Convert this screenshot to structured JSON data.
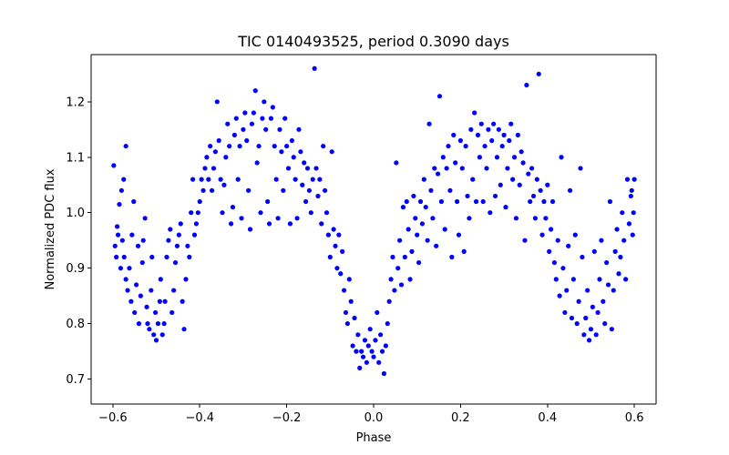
{
  "chart_data": {
    "type": "scatter",
    "title": "TIC 0140493525, period 0.3090 days",
    "xlabel": "Phase",
    "ylabel": "Normalized PDC flux",
    "xlim": [
      -0.65,
      0.65
    ],
    "ylim": [
      0.655,
      1.285
    ],
    "xticks": [
      -0.6,
      -0.4,
      -0.2,
      0.0,
      0.2,
      0.4,
      0.6
    ],
    "xtick_labels": [
      "−0.6",
      "−0.4",
      "−0.2",
      "0.0",
      "0.2",
      "0.4",
      "0.6"
    ],
    "yticks": [
      0.7,
      0.8,
      0.9,
      1.0,
      1.1,
      1.2
    ],
    "ytick_labels": [
      "0.7",
      "0.8",
      "0.9",
      "1.0",
      "1.1",
      "1.2"
    ],
    "grid": false,
    "marker_color": "#0000ff",
    "series": [
      {
        "name": "PDC flux",
        "points": [
          [
            -0.595,
            0.94
          ],
          [
            -0.59,
            0.975
          ],
          [
            -0.585,
            1.015
          ],
          [
            -0.58,
            1.04
          ],
          [
            -0.575,
            1.06
          ],
          [
            -0.57,
            1.12
          ],
          [
            -0.598,
            1.085
          ],
          [
            -0.592,
            0.92
          ],
          [
            -0.588,
            0.96
          ],
          [
            -0.582,
            0.9
          ],
          [
            -0.578,
            0.95
          ],
          [
            -0.574,
            0.92
          ],
          [
            -0.57,
            0.88
          ],
          [
            -0.566,
            0.86
          ],
          [
            -0.562,
            0.9
          ],
          [
            -0.558,
            0.84
          ],
          [
            -0.556,
            0.96
          ],
          [
            -0.552,
            1.02
          ],
          [
            -0.55,
            0.82
          ],
          [
            -0.546,
            0.87
          ],
          [
            -0.542,
            0.94
          ],
          [
            -0.54,
            0.8
          ],
          [
            -0.536,
            0.85
          ],
          [
            -0.532,
            0.91
          ],
          [
            -0.53,
            0.95
          ],
          [
            -0.526,
            0.99
          ],
          [
            -0.522,
            0.83
          ],
          [
            -0.52,
            0.8
          ],
          [
            -0.516,
            0.79
          ],
          [
            -0.512,
            0.86
          ],
          [
            -0.51,
            0.92
          ],
          [
            -0.506,
            0.78
          ],
          [
            -0.502,
            0.82
          ],
          [
            -0.5,
            0.77
          ],
          [
            -0.496,
            0.8
          ],
          [
            -0.492,
            0.84
          ],
          [
            -0.49,
            0.88
          ],
          [
            -0.486,
            0.78
          ],
          [
            -0.482,
            0.8
          ],
          [
            -0.48,
            0.84
          ],
          [
            -0.476,
            0.92
          ],
          [
            -0.472,
            0.95
          ],
          [
            -0.468,
            0.97
          ],
          [
            -0.464,
            0.82
          ],
          [
            -0.46,
            0.86
          ],
          [
            -0.456,
            0.91
          ],
          [
            -0.452,
            0.94
          ],
          [
            -0.448,
            0.96
          ],
          [
            -0.444,
            0.98
          ],
          [
            -0.44,
            0.84
          ],
          [
            -0.436,
            0.79
          ],
          [
            -0.432,
            0.88
          ],
          [
            -0.428,
            0.94
          ],
          [
            -0.424,
            0.92
          ],
          [
            -0.42,
            1.0
          ],
          [
            -0.416,
            1.06
          ],
          [
            -0.412,
            0.96
          ],
          [
            -0.408,
            0.98
          ],
          [
            -0.404,
            1.0
          ],
          [
            -0.4,
            1.02
          ],
          [
            -0.396,
            1.06
          ],
          [
            -0.392,
            1.04
          ],
          [
            -0.388,
            1.08
          ],
          [
            -0.384,
            1.1
          ],
          [
            -0.38,
            1.06
          ],
          [
            -0.376,
            1.12
          ],
          [
            -0.372,
            1.04
          ],
          [
            -0.368,
            1.08
          ],
          [
            -0.364,
            1.11
          ],
          [
            -0.36,
            1.2
          ],
          [
            -0.356,
            1.13
          ],
          [
            -0.352,
            1.06
          ],
          [
            -0.348,
            1.0
          ],
          [
            -0.344,
            1.05
          ],
          [
            -0.34,
            1.1
          ],
          [
            -0.336,
            1.16
          ],
          [
            -0.332,
            1.12
          ],
          [
            -0.328,
            0.98
          ],
          [
            -0.324,
            1.01
          ],
          [
            -0.32,
            1.14
          ],
          [
            -0.316,
            1.17
          ],
          [
            -0.312,
            1.06
          ],
          [
            -0.308,
            1.12
          ],
          [
            -0.304,
            0.99
          ],
          [
            -0.3,
            1.15
          ],
          [
            -0.296,
            1.18
          ],
          [
            -0.292,
            1.13
          ],
          [
            -0.288,
            1.04
          ],
          [
            -0.284,
            0.97
          ],
          [
            -0.28,
            1.16
          ],
          [
            -0.276,
            1.18
          ],
          [
            -0.272,
            1.22
          ],
          [
            -0.268,
            1.09
          ],
          [
            -0.264,
            1.12
          ],
          [
            -0.26,
            1.0
          ],
          [
            -0.256,
            1.17
          ],
          [
            -0.252,
            1.2
          ],
          [
            -0.248,
            1.15
          ],
          [
            -0.244,
            1.02
          ],
          [
            -0.24,
            0.98
          ],
          [
            -0.236,
            1.17
          ],
          [
            -0.232,
            1.19
          ],
          [
            -0.228,
            1.12
          ],
          [
            -0.224,
            1.06
          ],
          [
            -0.22,
            0.99
          ],
          [
            -0.216,
            1.15
          ],
          [
            -0.212,
            1.11
          ],
          [
            -0.208,
            1.04
          ],
          [
            -0.204,
            1.17
          ],
          [
            -0.2,
            1.12
          ],
          [
            -0.196,
            1.08
          ],
          [
            -0.192,
            0.98
          ],
          [
            -0.188,
            1.13
          ],
          [
            -0.184,
            1.1
          ],
          [
            -0.18,
            1.06
          ],
          [
            -0.176,
            0.99
          ],
          [
            -0.172,
            1.15
          ],
          [
            -0.168,
            1.11
          ],
          [
            -0.164,
            1.05
          ],
          [
            -0.16,
            1.09
          ],
          [
            -0.156,
            1.02
          ],
          [
            -0.152,
            1.08
          ],
          [
            -0.148,
            1.04
          ],
          [
            -0.144,
            1.0
          ],
          [
            -0.14,
            1.06
          ],
          [
            -0.136,
            1.26
          ],
          [
            -0.132,
            1.08
          ],
          [
            -0.128,
            1.03
          ],
          [
            -0.124,
            1.06
          ],
          [
            -0.12,
            0.98
          ],
          [
            -0.116,
            1.12
          ],
          [
            -0.112,
            1.04
          ],
          [
            -0.108,
            1.0
          ],
          [
            -0.104,
            0.96
          ],
          [
            -0.1,
            0.92
          ],
          [
            -0.096,
            1.11
          ],
          [
            -0.092,
            0.97
          ],
          [
            -0.088,
            0.94
          ],
          [
            -0.084,
            0.9
          ],
          [
            -0.08,
            0.96
          ],
          [
            -0.076,
            0.89
          ],
          [
            -0.072,
            0.93
          ],
          [
            -0.068,
            0.86
          ],
          [
            -0.064,
            0.82
          ],
          [
            -0.06,
            0.8
          ],
          [
            -0.056,
            0.88
          ],
          [
            -0.052,
            0.84
          ],
          [
            -0.048,
            0.76
          ],
          [
            -0.044,
            0.81
          ],
          [
            -0.04,
            0.75
          ],
          [
            -0.036,
            0.78
          ],
          [
            -0.032,
            0.72
          ],
          [
            -0.028,
            0.75
          ],
          [
            -0.024,
            0.74
          ],
          [
            -0.02,
            0.77
          ],
          [
            -0.016,
            0.73
          ],
          [
            -0.012,
            0.76
          ],
          [
            -0.008,
            0.79
          ],
          [
            -0.004,
            0.75
          ],
          [
            0.0,
            0.74
          ],
          [
            0.004,
            0.77
          ],
          [
            0.008,
            0.82
          ],
          [
            0.012,
            0.73
          ],
          [
            0.016,
            0.78
          ],
          [
            0.02,
            0.75
          ],
          [
            0.024,
            0.71
          ],
          [
            0.028,
            0.76
          ],
          [
            0.032,
            0.8
          ],
          [
            0.036,
            0.84
          ],
          [
            0.04,
            0.88
          ],
          [
            0.044,
            0.92
          ],
          [
            0.048,
            0.86
          ],
          [
            0.052,
            1.09
          ],
          [
            0.056,
            0.9
          ],
          [
            0.06,
            0.95
          ],
          [
            0.064,
            0.87
          ],
          [
            0.068,
            1.01
          ],
          [
            0.072,
            0.92
          ],
          [
            0.076,
            1.02
          ],
          [
            0.08,
            0.97
          ],
          [
            0.084,
            0.88
          ],
          [
            0.088,
            0.93
          ],
          [
            0.092,
            1.03
          ],
          [
            0.096,
            0.99
          ],
          [
            0.1,
            0.96
          ],
          [
            0.104,
            0.91
          ],
          [
            0.108,
            1.02
          ],
          [
            0.112,
            0.98
          ],
          [
            0.116,
            1.06
          ],
          [
            0.12,
            1.01
          ],
          [
            0.124,
            0.95
          ],
          [
            0.128,
            1.16
          ],
          [
            0.132,
            1.04
          ],
          [
            0.136,
            0.99
          ],
          [
            0.14,
            1.08
          ],
          [
            0.144,
            0.94
          ],
          [
            0.148,
            1.07
          ],
          [
            0.152,
            1.21
          ],
          [
            0.156,
            1.02
          ],
          [
            0.16,
            1.1
          ],
          [
            0.164,
            0.97
          ],
          [
            0.168,
            1.08
          ],
          [
            0.172,
            1.12
          ],
          [
            0.176,
            1.04
          ],
          [
            0.18,
            0.92
          ],
          [
            0.184,
            1.14
          ],
          [
            0.188,
            1.09
          ],
          [
            0.192,
            1.02
          ],
          [
            0.196,
            0.96
          ],
          [
            0.2,
            1.13
          ],
          [
            0.204,
            1.08
          ],
          [
            0.208,
            0.93
          ],
          [
            0.212,
            1.12
          ],
          [
            0.216,
            1.03
          ],
          [
            0.22,
            0.99
          ],
          [
            0.224,
            1.15
          ],
          [
            0.228,
            1.06
          ],
          [
            0.232,
            1.18
          ],
          [
            0.236,
            1.02
          ],
          [
            0.24,
            1.14
          ],
          [
            0.244,
            1.1
          ],
          [
            0.248,
            1.16
          ],
          [
            0.252,
            1.02
          ],
          [
            0.256,
            1.12
          ],
          [
            0.26,
            1.08
          ],
          [
            0.264,
            1.15
          ],
          [
            0.268,
            1.0
          ],
          [
            0.272,
            1.13
          ],
          [
            0.276,
            1.16
          ],
          [
            0.28,
            1.03
          ],
          [
            0.284,
            1.1
          ],
          [
            0.288,
            1.15
          ],
          [
            0.292,
            1.05
          ],
          [
            0.296,
            1.12
          ],
          [
            0.3,
            1.14
          ],
          [
            0.304,
            1.01
          ],
          [
            0.308,
            1.08
          ],
          [
            0.312,
            1.13
          ],
          [
            0.316,
            1.16
          ],
          [
            0.32,
            1.06
          ],
          [
            0.324,
            1.1
          ],
          [
            0.328,
            0.99
          ],
          [
            0.332,
            1.14
          ],
          [
            0.336,
            1.05
          ],
          [
            0.34,
            1.11
          ],
          [
            0.344,
            1.09
          ],
          [
            0.348,
            0.95
          ],
          [
            0.352,
            1.23
          ],
          [
            0.356,
            1.07
          ],
          [
            0.36,
            1.02
          ],
          [
            0.364,
            1.08
          ],
          [
            0.368,
            1.03
          ],
          [
            0.372,
            0.99
          ],
          [
            0.376,
            1.06
          ],
          [
            0.38,
            1.25
          ],
          [
            0.384,
            1.04
          ],
          [
            0.388,
            0.96
          ],
          [
            0.392,
            1.02
          ],
          [
            0.396,
            0.99
          ],
          [
            0.4,
            1.05
          ],
          [
            0.404,
            0.93
          ],
          [
            0.408,
            0.97
          ],
          [
            0.412,
            1.02
          ],
          [
            0.416,
            0.91
          ],
          [
            0.42,
            0.88
          ],
          [
            0.424,
            0.95
          ],
          [
            0.428,
            0.85
          ],
          [
            0.432,
            1.1
          ],
          [
            0.436,
            0.9
          ],
          [
            0.44,
            0.82
          ],
          [
            0.444,
            0.86
          ],
          [
            0.448,
            0.94
          ],
          [
            0.452,
            1.04
          ],
          [
            0.456,
            0.81
          ],
          [
            0.46,
            0.88
          ],
          [
            0.464,
            0.96
          ],
          [
            0.468,
            0.8
          ],
          [
            0.472,
            0.84
          ],
          [
            0.476,
            1.08
          ],
          [
            0.48,
            0.92
          ],
          [
            0.484,
            0.78
          ],
          [
            0.488,
            0.81
          ],
          [
            0.492,
            0.86
          ],
          [
            0.496,
            0.77
          ],
          [
            0.5,
            0.79
          ],
          [
            0.504,
            0.83
          ],
          [
            0.508,
            0.93
          ],
          [
            0.512,
            0.78
          ],
          [
            0.516,
            0.82
          ],
          [
            0.52,
            0.88
          ],
          [
            0.524,
            0.95
          ],
          [
            0.528,
            0.84
          ],
          [
            0.532,
            0.8
          ],
          [
            0.536,
            0.91
          ],
          [
            0.54,
            0.87
          ],
          [
            0.544,
            1.02
          ],
          [
            0.548,
            0.79
          ],
          [
            0.552,
            0.86
          ],
          [
            0.556,
            0.93
          ],
          [
            0.56,
            0.97
          ],
          [
            0.564,
            0.89
          ],
          [
            0.568,
            0.92
          ],
          [
            0.572,
            1.0
          ],
          [
            0.576,
            0.95
          ],
          [
            0.58,
            0.88
          ],
          [
            0.584,
            1.06
          ],
          [
            0.588,
            0.98
          ],
          [
            0.592,
            1.03
          ],
          [
            0.596,
            0.96
          ],
          [
            0.6,
            1.06
          ],
          [
            0.598,
            1.0
          ],
          [
            0.594,
            1.04
          ]
        ]
      }
    ]
  }
}
